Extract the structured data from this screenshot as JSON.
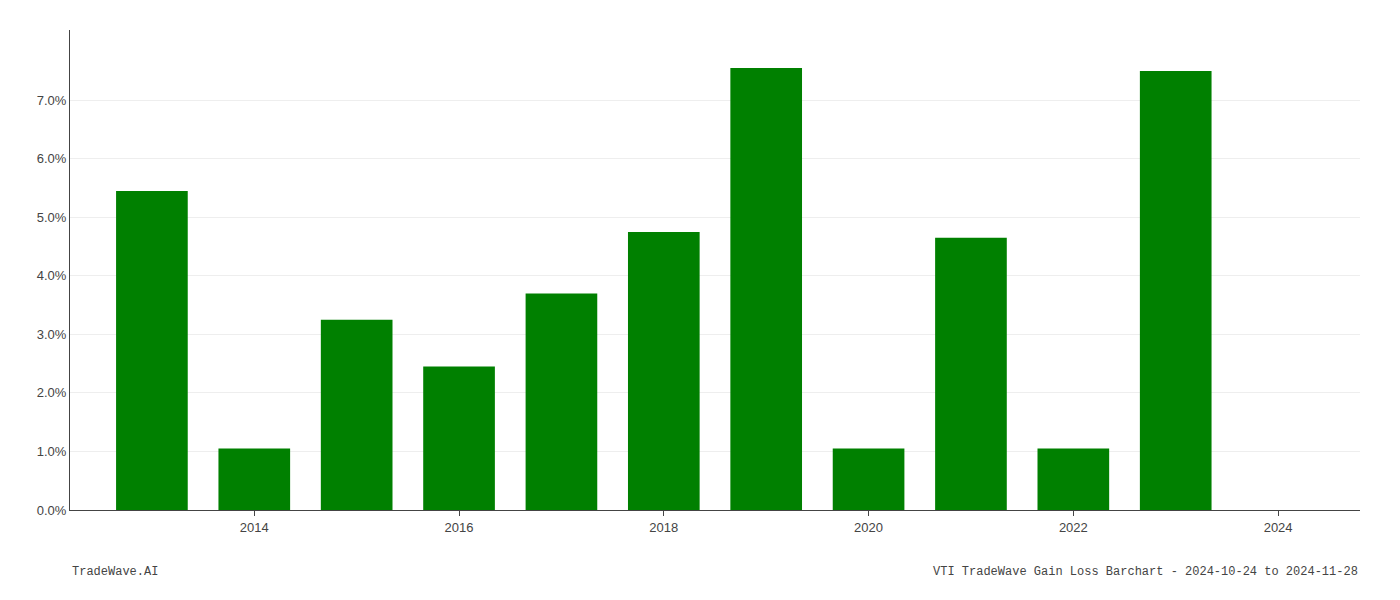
{
  "chart_data": {
    "type": "bar",
    "x": [
      2013,
      2014,
      2015,
      2016,
      2017,
      2018,
      2019,
      2020,
      2021,
      2022,
      2023
    ],
    "values": [
      0.0545,
      0.0105,
      0.0325,
      0.0245,
      0.037,
      0.0475,
      0.0755,
      0.0105,
      0.0465,
      0.0105,
      0.075
    ],
    "color": "#008000",
    "xlim": [
      2012.2,
      2024.8
    ],
    "xticks": [
      2014,
      2016,
      2018,
      2020,
      2022,
      2024
    ],
    "ylim": [
      0,
      0.082
    ],
    "yticks": [
      {
        "value": 0.0,
        "label": "0.0%"
      },
      {
        "value": 0.01,
        "label": "1.0%"
      },
      {
        "value": 0.02,
        "label": "2.0%"
      },
      {
        "value": 0.03,
        "label": "3.0%"
      },
      {
        "value": 0.04,
        "label": "4.0%"
      },
      {
        "value": 0.05,
        "label": "5.0%"
      },
      {
        "value": 0.06,
        "label": "6.0%"
      },
      {
        "value": 0.07,
        "label": "7.0%"
      }
    ],
    "grid": "y",
    "annotations": [
      "TradeWave.AI",
      "VTI TradeWave Gain Loss Barchart - 2024-10-24 to 2024-11-28"
    ]
  }
}
